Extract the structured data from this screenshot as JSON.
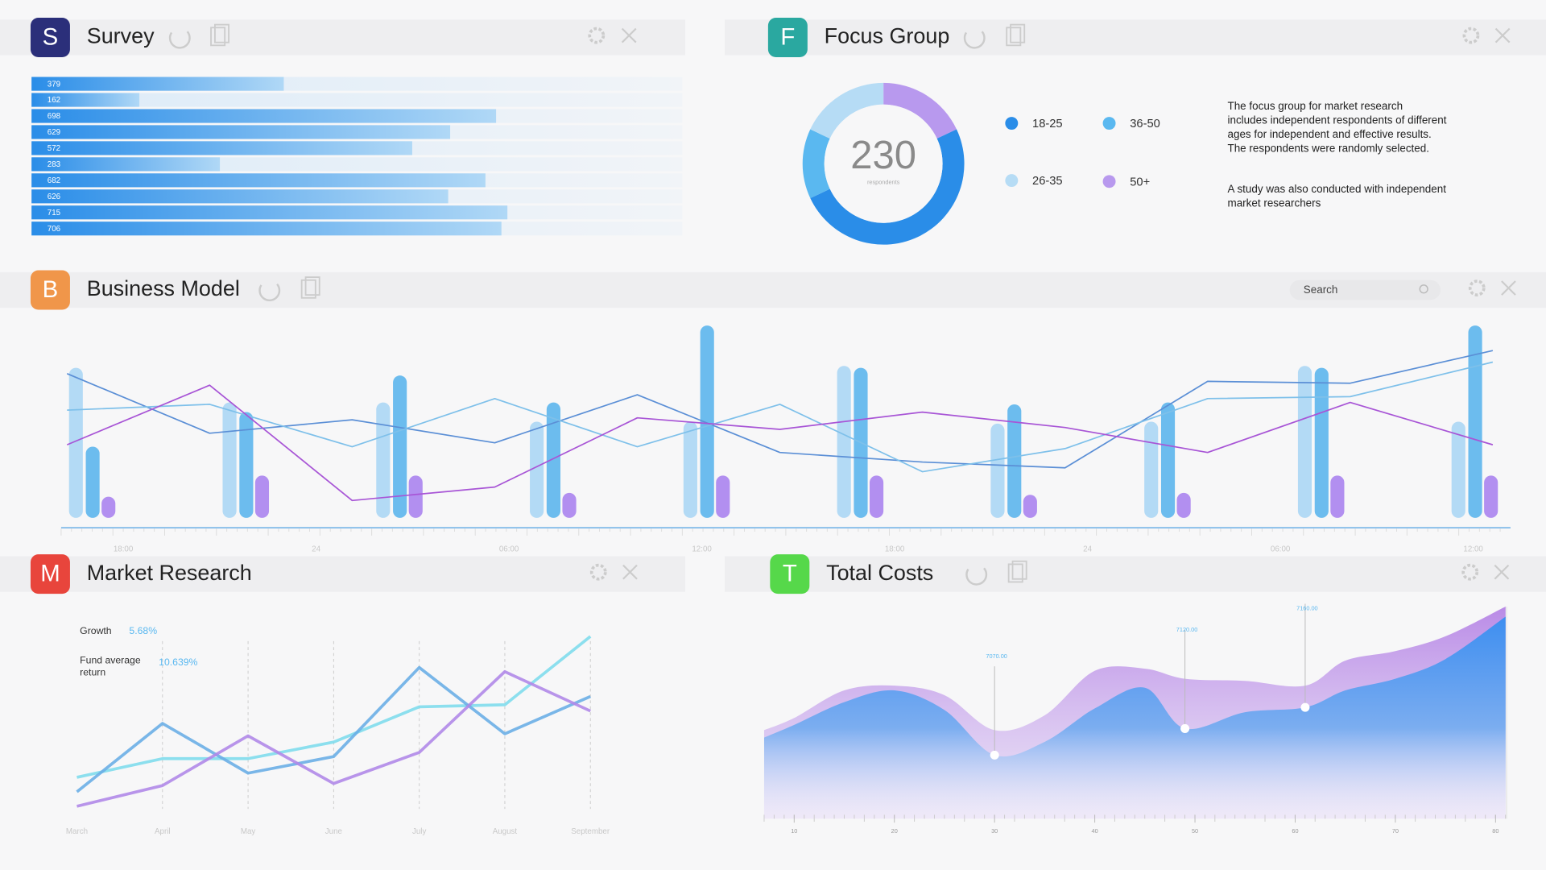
{
  "panels": [
    {
      "icon": "S",
      "title": "Survey"
    },
    {
      "icon": "F",
      "title": "Focus Group"
    },
    {
      "icon": "B",
      "title": "Business Model"
    },
    {
      "icon": "M",
      "title": "Market Research"
    },
    {
      "icon": "T",
      "title": "Total Costs"
    }
  ],
  "search": {
    "placeholder": "Search"
  },
  "focus_group": {
    "paragraphs": [
      [
        "The focus group for market research",
        "includes independent respondents of different",
        "ages for independent and effective results.",
        "The respondents were randomly selected."
      ],
      [
        "A study was also conducted with independent",
        "market researchers"
      ]
    ]
  },
  "chart_data": [
    {
      "type": "hbar",
      "values": [
        379,
        162,
        698,
        629,
        572,
        283,
        682,
        626,
        715,
        706
      ],
      "color": "#2a8de8"
    },
    {
      "type": "donut",
      "center_label": 230,
      "center_sublabel": "respondents",
      "categories": [
        "50+",
        "18-25",
        "36-50",
        "26-35"
      ],
      "values": [
        18,
        50,
        14,
        18
      ],
      "colors": [
        "#b899ee",
        "#2a8de8",
        "#5ab8f0",
        "#b6dcf5"
      ]
    },
    {
      "type": "bar",
      "categories": [
        null,
        null,
        null,
        null,
        null,
        null,
        null,
        null,
        null,
        null
      ],
      "series": [
        {
          "color": "#b3daf5",
          "values": [
            78,
            60,
            60,
            50,
            50,
            79,
            49,
            50,
            79,
            50
          ]
        },
        {
          "color": "#6cbcee",
          "values": [
            37,
            55,
            74,
            60,
            100,
            78,
            59,
            60,
            78,
            100
          ]
        },
        {
          "color": "#b28ff0",
          "values": [
            11,
            22,
            22,
            13,
            22,
            22,
            12,
            13,
            22,
            22
          ]
        }
      ]
    },
    {
      "type": "line",
      "categories": [
        null,
        null,
        null,
        null,
        null,
        null,
        null,
        null,
        null,
        null,
        null
      ],
      "xtick_labels": [
        "18:00",
        "24",
        "06:00",
        "12:00",
        "18:00",
        "24",
        "06:00",
        "12:00"
      ],
      "series": [
        {
          "color": "#5b8fd6",
          "values": [
            75,
            44,
            51,
            39,
            64,
            34,
            29,
            26,
            71,
            70,
            87
          ]
        },
        {
          "color": "#7ec0ea",
          "values": [
            56,
            59,
            37,
            62,
            37,
            59,
            24,
            36,
            62,
            63,
            81
          ]
        },
        {
          "color": "#a855d6",
          "values": [
            38,
            69,
            9,
            16,
            52,
            46,
            55,
            47,
            34,
            60,
            38
          ]
        }
      ]
    },
    {
      "type": "line",
      "categories": [
        "March",
        "April",
        "May",
        "June",
        "July",
        "August",
        "September"
      ],
      "series": [
        {
          "color": "#7fdcec",
          "values": [
            20,
            29,
            29,
            37,
            54,
            55,
            88
          ]
        },
        {
          "color": "#6aaee6",
          "values": [
            13,
            46,
            22,
            30,
            73,
            41,
            59
          ]
        },
        {
          "color": "#b088e8",
          "values": [
            6,
            16,
            40,
            17,
            32,
            71,
            52
          ]
        }
      ],
      "annotations": [
        {
          "label": [
            "Growth"
          ],
          "value": 5.68,
          "value_label": "5.68%"
        },
        {
          "label": [
            "Fund average",
            "return"
          ],
          "value": 10.639,
          "value_label": "10.639%"
        }
      ]
    },
    {
      "type": "area",
      "x": [
        7,
        10,
        15,
        20,
        25,
        30,
        35,
        40,
        45,
        49,
        55,
        61,
        65,
        70,
        75,
        81
      ],
      "xlim": [
        7,
        81
      ],
      "xticks": [
        10,
        20,
        30,
        40,
        50,
        60,
        70,
        80
      ],
      "ylim": [
        6950,
        7350
      ],
      "series": [
        {
          "color": "#b98ae6",
          "values": [
            7117,
            7140,
            7192,
            7201,
            7183,
            7117,
            7145,
            7229,
            7233,
            7214,
            7210,
            7201,
            7248,
            7266,
            7294,
            7350
          ]
        },
        {
          "color": "#3d8ff0",
          "values": [
            7103,
            7127,
            7170,
            7192,
            7155,
            7070,
            7095,
            7158,
            7197,
            7120,
            7151,
            7160,
            7192,
            7214,
            7251,
            7331
          ]
        }
      ],
      "annotations": [
        {
          "x": 30,
          "value": 7070,
          "label": "7070.00"
        },
        {
          "x": 49,
          "value": 7120,
          "label": "7120.00"
        },
        {
          "x": 61,
          "value": 7160,
          "label": "7160.00"
        }
      ]
    }
  ]
}
